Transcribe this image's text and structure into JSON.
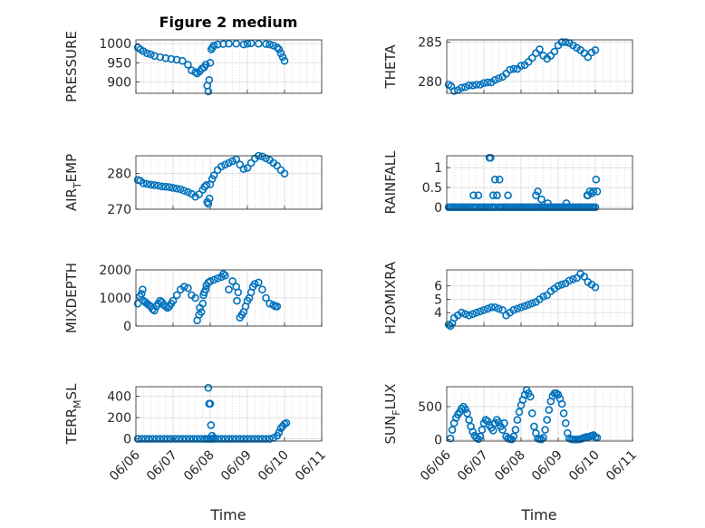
{
  "window_title": "Figure 2 medium",
  "shared_x": {
    "label": "Time",
    "ticks": [
      "06/06",
      "06/07",
      "06/08",
      "06/09",
      "06/10",
      "06/11"
    ]
  },
  "colors": {
    "marker": "#0072BD",
    "axis": "#262626",
    "grid": "#d9d9d9"
  },
  "chart_data": [
    {
      "type": "scatter",
      "ylabel": "PRESSURE",
      "ylim": [
        870,
        1010
      ],
      "ytick_labels": [
        "900",
        "950",
        "1000"
      ],
      "grid": true,
      "x_range": [
        0,
        5
      ],
      "x": [
        0.05,
        0.12,
        0.2,
        0.3,
        0.4,
        0.5,
        0.65,
        0.8,
        0.95,
        1.1,
        1.25,
        1.4,
        1.5,
        1.6,
        1.65,
        1.72,
        1.78,
        1.84,
        1.88,
        1.92,
        1.95,
        1.97,
        2.0,
        2.03,
        2.06,
        2.1,
        2.2,
        2.35,
        2.5,
        2.7,
        2.9,
        3.0,
        3.1,
        3.3,
        3.5,
        3.6,
        3.7,
        3.8,
        3.85,
        3.9,
        3.95,
        4.0
      ],
      "y": [
        990,
        985,
        980,
        975,
        972,
        968,
        965,
        962,
        960,
        958,
        955,
        945,
        930,
        925,
        922,
        928,
        935,
        938,
        945,
        890,
        875,
        905,
        950,
        985,
        990,
        995,
        998,
        999,
        1000,
        1000,
        998,
        1000,
        1001,
        1000,
        999,
        998,
        995,
        990,
        985,
        975,
        965,
        955
      ]
    },
    {
      "type": "scatter",
      "ylabel": "THETA",
      "ylim": [
        278.5,
        285.3
      ],
      "ytick_labels": [
        "280",
        "285"
      ],
      "grid": true,
      "x_range": [
        0,
        5
      ],
      "x": [
        0.05,
        0.12,
        0.2,
        0.3,
        0.4,
        0.5,
        0.6,
        0.7,
        0.8,
        0.9,
        1.0,
        1.1,
        1.2,
        1.3,
        1.4,
        1.5,
        1.6,
        1.7,
        1.8,
        1.9,
        2.0,
        2.1,
        2.2,
        2.3,
        2.4,
        2.5,
        2.6,
        2.7,
        2.8,
        2.9,
        3.0,
        3.1,
        3.2,
        3.3,
        3.4,
        3.5,
        3.6,
        3.7,
        3.8,
        3.9,
        4.0
      ],
      "y": [
        279.6,
        279.4,
        278.8,
        278.9,
        279.2,
        279.3,
        279.5,
        279.5,
        279.6,
        279.6,
        279.8,
        279.9,
        279.9,
        280.2,
        280.4,
        280.6,
        281.0,
        281.5,
        281.6,
        281.6,
        282.0,
        282.1,
        282.5,
        283.0,
        283.6,
        284.1,
        283.3,
        282.9,
        283.3,
        283.8,
        284.6,
        285.0,
        285.0,
        284.9,
        284.6,
        284.3,
        284.0,
        283.6,
        283.1,
        283.7,
        284.0
      ]
    },
    {
      "type": "scatter",
      "ylabel": "AIR_TEMP",
      "ylim": [
        270,
        285
      ],
      "ytick_labels": [
        "270",
        "280"
      ],
      "grid": true,
      "x_range": [
        0,
        5
      ],
      "x": [
        0.05,
        0.12,
        0.2,
        0.3,
        0.4,
        0.5,
        0.6,
        0.7,
        0.8,
        0.9,
        1.0,
        1.1,
        1.2,
        1.3,
        1.4,
        1.5,
        1.6,
        1.7,
        1.8,
        1.85,
        1.9,
        1.92,
        1.95,
        1.98,
        2.0,
        2.05,
        2.1,
        2.2,
        2.3,
        2.4,
        2.5,
        2.6,
        2.7,
        2.8,
        2.9,
        3.0,
        3.1,
        3.2,
        3.3,
        3.4,
        3.5,
        3.6,
        3.7,
        3.8,
        3.9,
        4.0
      ],
      "y": [
        278.2,
        278,
        277.3,
        277.1,
        276.9,
        276.8,
        276.6,
        276.4,
        276.3,
        276.2,
        276.0,
        275.8,
        275.6,
        275.2,
        274.8,
        274.3,
        273.5,
        274.2,
        275.5,
        276.3,
        276.8,
        272,
        271.5,
        273,
        277,
        278.5,
        279.5,
        281,
        282,
        282.5,
        283,
        283.5,
        284,
        282.5,
        281.3,
        281.6,
        283,
        284.2,
        285,
        284.8,
        284.3,
        283.8,
        283.0,
        282.2,
        281.0,
        280.0
      ]
    },
    {
      "type": "scatter",
      "ylabel": "RAINFALL",
      "ylim": [
        -0.05,
        1.3
      ],
      "ytick_labels": [
        "0",
        "0.5",
        "1"
      ],
      "grid": true,
      "x_range": [
        0,
        5
      ],
      "x": [
        0.05,
        0.1,
        0.15,
        0.2,
        0.25,
        0.3,
        0.35,
        0.4,
        0.45,
        0.5,
        0.55,
        0.6,
        0.65,
        0.7,
        0.72,
        0.75,
        0.8,
        0.85,
        0.88,
        0.9,
        0.95,
        1.0,
        1.05,
        1.1,
        1.15,
        1.2,
        1.25,
        1.3,
        1.35,
        1.4,
        1.45,
        1.5,
        1.55,
        1.6,
        1.65,
        1.7,
        1.75,
        1.8,
        1.85,
        1.9,
        1.95,
        2.0,
        2.05,
        2.1,
        2.15,
        2.2,
        2.25,
        2.3,
        2.35,
        2.4,
        2.45,
        2.5,
        2.55,
        2.6,
        2.65,
        2.7,
        2.75,
        2.8,
        2.85,
        2.9,
        2.95,
        3.0,
        3.05,
        3.1,
        3.15,
        3.2,
        3.25,
        3.3,
        3.35,
        3.4,
        3.45,
        3.5,
        3.55,
        3.6,
        3.65,
        3.7,
        3.75,
        3.8,
        3.85,
        3.9,
        3.95,
        4.0,
        1.15,
        1.18,
        1.35,
        1.42,
        1.65,
        1.3,
        1.25,
        2.4,
        2.45,
        2.55,
        2.72,
        3.22,
        3.85,
        3.9,
        3.95,
        4.02,
        4.05,
        3.8,
        3.78
      ],
      "y": [
        0,
        0,
        0,
        0,
        0,
        0,
        0,
        0,
        0,
        0,
        0,
        0,
        0,
        0,
        0.3,
        0,
        0,
        0.3,
        0,
        0,
        0,
        0,
        0,
        0,
        0,
        0,
        0,
        0,
        0.3,
        0,
        0,
        0,
        0,
        0,
        0,
        0,
        0,
        0,
        0,
        0,
        0,
        0,
        0,
        0,
        0,
        0,
        0,
        0,
        0,
        0,
        0,
        0,
        0,
        0,
        0,
        0,
        0,
        0,
        0,
        0,
        0,
        0,
        0,
        0,
        0,
        0,
        0,
        0,
        0,
        0,
        0,
        0,
        0,
        0,
        0,
        0,
        0,
        0,
        0,
        0,
        0,
        0,
        1.25,
        1.25,
        0.3,
        0.7,
        0.3,
        0.7,
        0.3,
        0.3,
        0.4,
        0.2,
        0.1,
        0.1,
        0.4,
        0.35,
        0.4,
        0.7,
        0.4,
        0.3,
        0.3
      ]
    },
    {
      "type": "scatter",
      "ylabel": "MIXDEPTH",
      "ylim": [
        0,
        2000
      ],
      "ytick_labels": [
        "0",
        "1000",
        "2000"
      ],
      "grid": true,
      "x_range": [
        0,
        5
      ],
      "x": [
        0.05,
        0.1,
        0.15,
        0.18,
        0.2,
        0.25,
        0.3,
        0.35,
        0.4,
        0.45,
        0.5,
        0.55,
        0.6,
        0.65,
        0.7,
        0.75,
        0.8,
        0.85,
        0.9,
        0.95,
        1.0,
        1.1,
        1.2,
        1.3,
        1.4,
        1.5,
        1.6,
        1.65,
        1.7,
        1.72,
        1.76,
        1.8,
        1.82,
        1.84,
        1.88,
        1.9,
        1.95,
        2.0,
        2.1,
        2.2,
        2.3,
        2.35,
        2.4,
        2.5,
        2.6,
        2.7,
        2.72,
        2.75,
        2.8,
        2.85,
        2.9,
        2.95,
        3.0,
        3.05,
        3.1,
        3.15,
        3.2,
        3.3,
        3.4,
        3.5,
        3.6,
        3.7,
        3.75,
        3.8
      ],
      "y": [
        800,
        1050,
        1150,
        1300,
        900,
        850,
        800,
        750,
        700,
        600,
        550,
        700,
        800,
        900,
        850,
        750,
        700,
        650,
        700,
        800,
        900,
        1100,
        1300,
        1400,
        1350,
        1100,
        1000,
        200,
        400,
        650,
        500,
        800,
        1100,
        1200,
        1300,
        1450,
        1550,
        1600,
        1650,
        1700,
        1750,
        1850,
        1800,
        1300,
        1600,
        1400,
        900,
        1200,
        300,
        400,
        500,
        700,
        900,
        1000,
        1200,
        1400,
        1500,
        1550,
        1300,
        1000,
        800,
        750,
        700,
        700
      ]
    },
    {
      "type": "scatter",
      "ylabel": "H2OMIXRA",
      "ylim": [
        3.0,
        7.2
      ],
      "ytick_labels": [
        "4",
        "5",
        "6"
      ],
      "grid": true,
      "x_range": [
        0,
        5
      ],
      "x": [
        0.05,
        0.1,
        0.15,
        0.2,
        0.3,
        0.4,
        0.5,
        0.6,
        0.7,
        0.8,
        0.9,
        1.0,
        1.1,
        1.2,
        1.3,
        1.4,
        1.5,
        1.6,
        1.7,
        1.8,
        1.9,
        2.0,
        2.1,
        2.2,
        2.3,
        2.4,
        2.5,
        2.6,
        2.7,
        2.8,
        2.9,
        3.0,
        3.1,
        3.2,
        3.3,
        3.4,
        3.5,
        3.6,
        3.7,
        3.8,
        3.9,
        4.0
      ],
      "y": [
        3.1,
        3.0,
        3.2,
        3.6,
        3.8,
        4.0,
        3.9,
        3.8,
        3.9,
        4.0,
        4.1,
        4.2,
        4.3,
        4.4,
        4.4,
        4.3,
        4.2,
        3.8,
        4.0,
        4.2,
        4.3,
        4.4,
        4.5,
        4.6,
        4.7,
        4.8,
        5.0,
        5.2,
        5.3,
        5.6,
        5.8,
        6.0,
        6.1,
        6.2,
        6.4,
        6.5,
        6.6,
        6.9,
        6.7,
        6.3,
        6.1,
        5.9
      ]
    },
    {
      "type": "scatter",
      "ylabel": "TERR_MSL",
      "ylim": [
        -20,
        490
      ],
      "ytick_labels": [
        "0",
        "200",
        "400"
      ],
      "grid": true,
      "x_range": [
        0,
        5
      ],
      "x": [
        0.05,
        0.15,
        0.25,
        0.35,
        0.45,
        0.55,
        0.65,
        0.75,
        0.85,
        0.95,
        1.05,
        1.15,
        1.25,
        1.35,
        1.45,
        1.55,
        1.65,
        1.75,
        1.85,
        1.9,
        1.95,
        2.0,
        2.05,
        2.1,
        2.2,
        2.3,
        2.4,
        2.5,
        2.6,
        2.7,
        2.8,
        2.9,
        3.0,
        3.1,
        3.2,
        3.3,
        3.4,
        3.5,
        3.6,
        3.7,
        3.8,
        3.85,
        3.9,
        3.95,
        4.0,
        4.05,
        1.95,
        1.97,
        2.0,
        2.02,
        2.05,
        2.1
      ],
      "y": [
        0,
        0,
        0,
        0,
        0,
        0,
        0,
        0,
        0,
        0,
        0,
        0,
        0,
        0,
        0,
        0,
        0,
        0,
        0,
        0,
        0,
        0,
        0,
        0,
        0,
        0,
        0,
        0,
        0,
        0,
        0,
        0,
        0,
        0,
        0,
        0,
        0,
        0,
        0,
        10,
        30,
        60,
        100,
        120,
        140,
        150,
        480,
        330,
        330,
        130,
        30,
        10
      ]
    },
    {
      "type": "scatter",
      "ylabel": "SUN_FLUX",
      "ylim": [
        -20,
        800
      ],
      "ytick_labels": [
        "0",
        "500"
      ],
      "grid": true,
      "x_range": [
        0,
        5
      ],
      "x": [
        0.1,
        0.15,
        0.2,
        0.25,
        0.3,
        0.35,
        0.4,
        0.45,
        0.5,
        0.55,
        0.6,
        0.65,
        0.7,
        0.75,
        0.8,
        0.85,
        0.9,
        0.95,
        1.0,
        1.05,
        1.1,
        1.15,
        1.2,
        1.25,
        1.3,
        1.35,
        1.4,
        1.45,
        1.5,
        1.55,
        1.6,
        1.65,
        1.7,
        1.75,
        1.8,
        1.85,
        1.9,
        1.95,
        2.0,
        2.05,
        2.1,
        2.15,
        2.2,
        2.25,
        2.3,
        2.35,
        2.4,
        2.45,
        2.5,
        2.55,
        2.6,
        2.65,
        2.7,
        2.75,
        2.8,
        2.85,
        2.9,
        2.95,
        3.0,
        3.05,
        3.1,
        3.15,
        3.2,
        3.25,
        3.3,
        3.35,
        3.4,
        3.45,
        3.5,
        3.55,
        3.6,
        3.65,
        3.7,
        3.75,
        3.8,
        3.85,
        3.9,
        3.95,
        4.0,
        4.05
      ],
      "y": [
        20,
        150,
        250,
        330,
        380,
        420,
        470,
        500,
        460,
        400,
        300,
        200,
        120,
        60,
        30,
        10,
        50,
        150,
        250,
        300,
        280,
        220,
        180,
        140,
        250,
        300,
        260,
        200,
        150,
        250,
        50,
        20,
        10,
        5,
        50,
        150,
        300,
        420,
        520,
        600,
        680,
        750,
        700,
        650,
        400,
        200,
        100,
        20,
        10,
        5,
        30,
        150,
        300,
        450,
        580,
        660,
        700,
        700,
        680,
        620,
        540,
        400,
        250,
        100,
        20,
        10,
        5,
        5,
        5,
        5,
        10,
        20,
        30,
        40,
        40,
        50,
        60,
        70,
        40,
        30
      ]
    }
  ]
}
